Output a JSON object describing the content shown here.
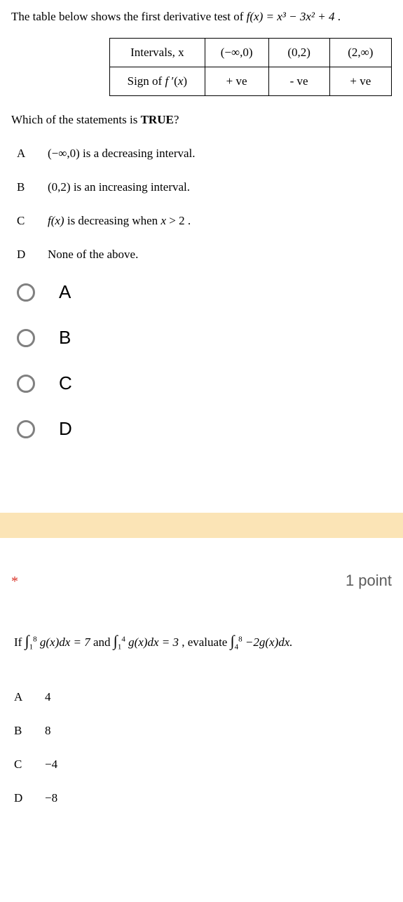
{
  "q1": {
    "intro_prefix": "The table below shows the first derivative test of ",
    "fn_expr": "f(x) = x³ − 3x² + 4",
    "table": {
      "row1_head": "Intervals, x",
      "row1": [
        "(−∞,0)",
        "(0,2)",
        "(2,∞)"
      ],
      "row2_head": "Sign of f ′(x)",
      "row2": [
        "+ ve",
        "- ve",
        "+ ve"
      ]
    },
    "prompt_pre": "Which of the statements is ",
    "prompt_bold": "TRUE",
    "prompt_post": "?",
    "options": {
      "A": {
        "math": "(−∞,0)",
        "rest": " is a decreasing interval."
      },
      "B": {
        "math": "(0,2)",
        "rest": " is an increasing interval."
      },
      "C": {
        "math": "f(x)",
        "rest": " is decreasing when x > 2 ."
      },
      "D": {
        "math": "",
        "rest": "None of the above."
      }
    },
    "radios": [
      "A",
      "B",
      "C",
      "D"
    ]
  },
  "q2": {
    "star": "*",
    "points": "1 point",
    "stem": {
      "t1": "If ",
      "int1_lb": "1",
      "int1_ub": "8",
      "int1_body": "g(x)dx = 7",
      "t2": " and ",
      "int2_lb": "1",
      "int2_ub": "4",
      "int2_body": "g(x)dx = 3",
      "t3": " , evaluate ",
      "int3_lb": "4",
      "int3_ub": "8",
      "int3_body": "−2g(x)dx."
    },
    "options": {
      "A": "4",
      "B": "8",
      "C": "−4",
      "D": "−8"
    }
  }
}
